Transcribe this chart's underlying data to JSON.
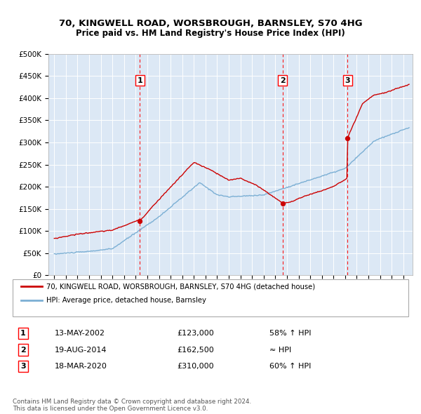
{
  "title": "70, KINGWELL ROAD, WORSBROUGH, BARNSLEY, S70 4HG",
  "subtitle": "Price paid vs. HM Land Registry's House Price Index (HPI)",
  "hpi_color": "#7bafd4",
  "price_color": "#cc0000",
  "bg_color": "#dce8f5",
  "grid_color": "#ffffff",
  "ylim": [
    0,
    500000
  ],
  "yticks": [
    0,
    50000,
    100000,
    150000,
    200000,
    250000,
    300000,
    350000,
    400000,
    450000,
    500000
  ],
  "ytick_labels": [
    "£0",
    "£50K",
    "£100K",
    "£150K",
    "£200K",
    "£250K",
    "£300K",
    "£350K",
    "£400K",
    "£450K",
    "£500K"
  ],
  "sales": [
    {
      "num": 1,
      "date_x": 2002.37,
      "price": 123000,
      "date_str": "13-MAY-2002",
      "hpi_rel": "58% ↑ HPI"
    },
    {
      "num": 2,
      "date_x": 2014.63,
      "price": 162500,
      "date_str": "19-AUG-2014",
      "hpi_rel": "≈ HPI"
    },
    {
      "num": 3,
      "date_x": 2020.21,
      "price": 310000,
      "date_str": "18-MAR-2020",
      "hpi_rel": "60% ↑ HPI"
    }
  ],
  "legend_line1": "70, KINGWELL ROAD, WORSBROUGH, BARNSLEY, S70 4HG (detached house)",
  "legend_line2": "HPI: Average price, detached house, Barnsley",
  "footnote": "Contains HM Land Registry data © Crown copyright and database right 2024.\nThis data is licensed under the Open Government Licence v3.0.",
  "xlim_start": 1994.5,
  "xlim_end": 2025.8
}
